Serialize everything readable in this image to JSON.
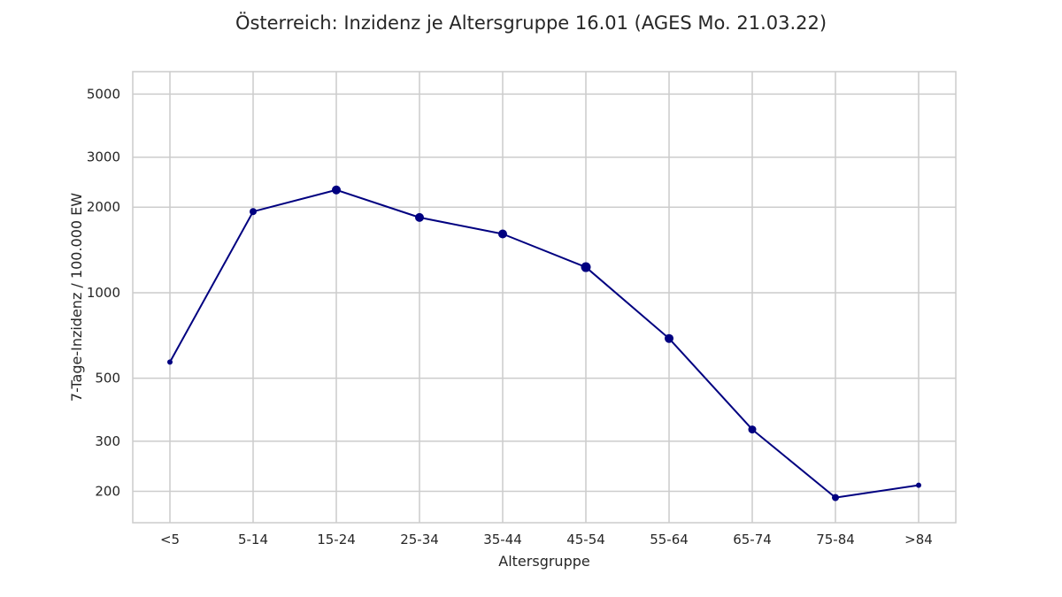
{
  "chart_data": {
    "type": "line",
    "title": "Österreich: Inzidenz je Altersgruppe 16.01 (AGES Mo. 21.03.22)",
    "xlabel": "Altersgruppe",
    "ylabel": "7-Tage-Inzidenz / 100.000 EW",
    "y_scale": "log",
    "ylim": [
      155,
      6000
    ],
    "y_ticks": [
      200,
      300,
      500,
      1000,
      2000,
      3000,
      5000
    ],
    "y_tick_labels": [
      "200",
      "300",
      "500",
      "1000",
      "2000",
      "3000",
      "5000"
    ],
    "categories": [
      "<5",
      "5-14",
      "15-24",
      "25-34",
      "35-44",
      "45-54",
      "55-64",
      "65-74",
      "75-84",
      ">84"
    ],
    "series": [
      {
        "values": [
          570,
          1930,
          2300,
          1840,
          1610,
          1230,
          690,
          330,
          190,
          210
        ],
        "marker_size": [
          3,
          4,
          5,
          5,
          5,
          5.5,
          5,
          4.5,
          4,
          3
        ],
        "color": "#000080"
      }
    ],
    "grid": true,
    "legend": "none",
    "colors": {
      "background": "#ffffff",
      "grid": "#cccccc",
      "frame": "#cccccc",
      "text": "#262626",
      "line": "#000080"
    }
  }
}
